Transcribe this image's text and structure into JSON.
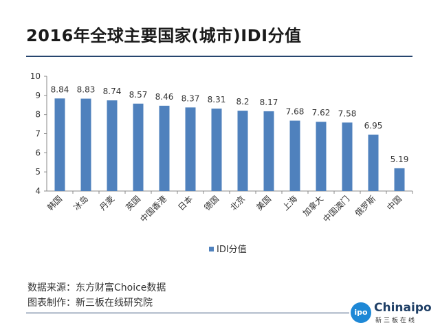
{
  "header": {
    "title": "2016年全球主要国家(城市)IDI分值"
  },
  "chart_data": {
    "type": "bar",
    "title": "2016年全球主要国家(城市)IDI分值",
    "categories": [
      "韩国",
      "冰岛",
      "丹麦",
      "英国",
      "中国香港",
      "日本",
      "德国",
      "北京",
      "美国",
      "上海",
      "加拿大",
      "中国澳门",
      "俄罗斯",
      "中国"
    ],
    "series": [
      {
        "name": "IDI分值",
        "values": [
          8.84,
          8.83,
          8.74,
          8.57,
          8.46,
          8.37,
          8.31,
          8.2,
          8.17,
          7.68,
          7.62,
          7.58,
          6.95,
          5.19
        ],
        "labels": [
          "8.84",
          "8.83",
          "8.74",
          "8.57",
          "8.46",
          "8.37",
          "8.31",
          "8.2",
          "8.17",
          "7.68",
          "7.62",
          "7.58",
          "6.95",
          "5.19"
        ]
      }
    ],
    "ylim": [
      4,
      10
    ],
    "yticks": [
      "4",
      "5",
      "6",
      "7",
      "8",
      "9",
      "10"
    ],
    "grid": false,
    "legend_position": "bottom",
    "bar_color": "#4f81bd"
  },
  "footer": {
    "source_line": "数据来源：东方财富Choice数据",
    "maker_line": "图表制作：新三板在线研究院"
  },
  "logo": {
    "badge": "ipo",
    "word": "Chinaipo",
    "sub": "新三板在线"
  }
}
